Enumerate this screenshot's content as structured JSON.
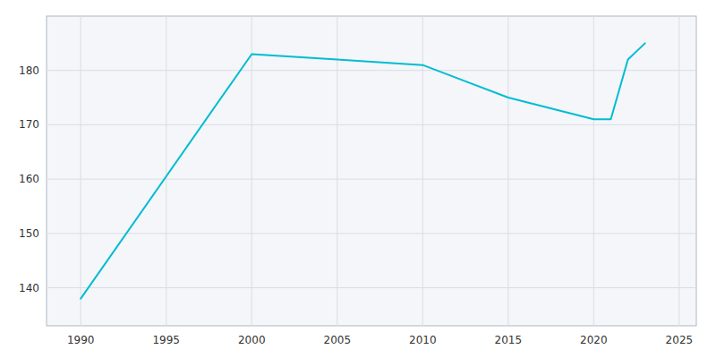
{
  "chart_data": {
    "type": "line",
    "x": [
      1990,
      2000,
      2005,
      2010,
      2015,
      2020,
      2021,
      2022,
      2023
    ],
    "values": [
      138,
      183,
      182,
      181,
      175,
      171,
      171,
      182,
      185
    ],
    "color": "#00bcd4",
    "xlim": [
      1988,
      2026
    ],
    "ylim": [
      133,
      190
    ],
    "xticks": [
      1990,
      1995,
      2000,
      2005,
      2010,
      2015,
      2020,
      2025
    ],
    "yticks": [
      140,
      150,
      160,
      170,
      180
    ],
    "grid": true
  }
}
